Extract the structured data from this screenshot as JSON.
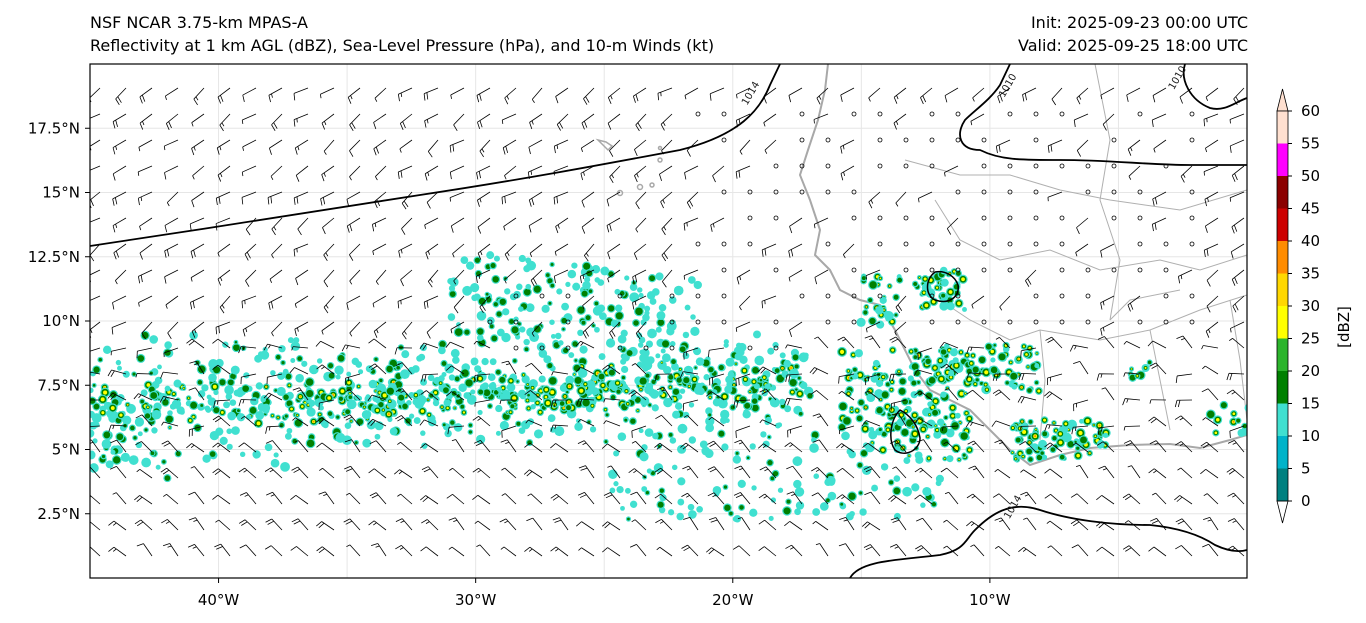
{
  "header": {
    "left_line1": "NSF NCAR 3.75-km MPAS-A",
    "left_line2": "Reflectivity at 1 km AGL (dBZ), Sea-Level Pressure (hPa), and 10-m Winds (kt)",
    "right_line1": "Init: 2025-09-23 00:00 UTC",
    "right_line2": "Valid: 2025-09-25 18:00 UTC"
  },
  "map": {
    "lon_range": [
      -45,
      0
    ],
    "lat_range": [
      0,
      20
    ],
    "lat_ticks": [
      {
        "value": 17.5,
        "label": "17.5°N"
      },
      {
        "value": 15,
        "label": "15°N"
      },
      {
        "value": 12.5,
        "label": "12.5°N"
      },
      {
        "value": 10,
        "label": "10°N"
      },
      {
        "value": 7.5,
        "label": "7.5°N"
      },
      {
        "value": 5,
        "label": "5°N"
      },
      {
        "value": 2.5,
        "label": "2.5°N"
      }
    ],
    "lon_ticks": [
      {
        "value": -40,
        "label": "40°W"
      },
      {
        "value": -30,
        "label": "30°W"
      },
      {
        "value": -20,
        "label": "20°W"
      },
      {
        "value": -10,
        "label": "10°W"
      }
    ],
    "contour_labels": [
      {
        "text": "1014",
        "lon": -19.2,
        "lat": 18.8
      },
      {
        "text": "1010",
        "lon": -9.2,
        "lat": 19.1
      },
      {
        "text": "1010",
        "lon": -2.6,
        "lat": 19.4
      },
      {
        "text": "1014",
        "lon": -9.0,
        "lat": 2.7
      }
    ]
  },
  "colorbar": {
    "label": "[dBZ]",
    "ticks": [
      "0",
      "5",
      "10",
      "15",
      "20",
      "25",
      "30",
      "35",
      "40",
      "45",
      "50",
      "55",
      "60"
    ],
    "colors": [
      "#008080",
      "#00b3c9",
      "#40e0d0",
      "#008000",
      "#2cb42c",
      "#ffff00",
      "#ffd700",
      "#ff8c00",
      "#cc0000",
      "#8b0000",
      "#ff00ff",
      "#ffe0d0"
    ],
    "low_color": "#ffffff",
    "high_color": "#ffe0d0"
  }
}
